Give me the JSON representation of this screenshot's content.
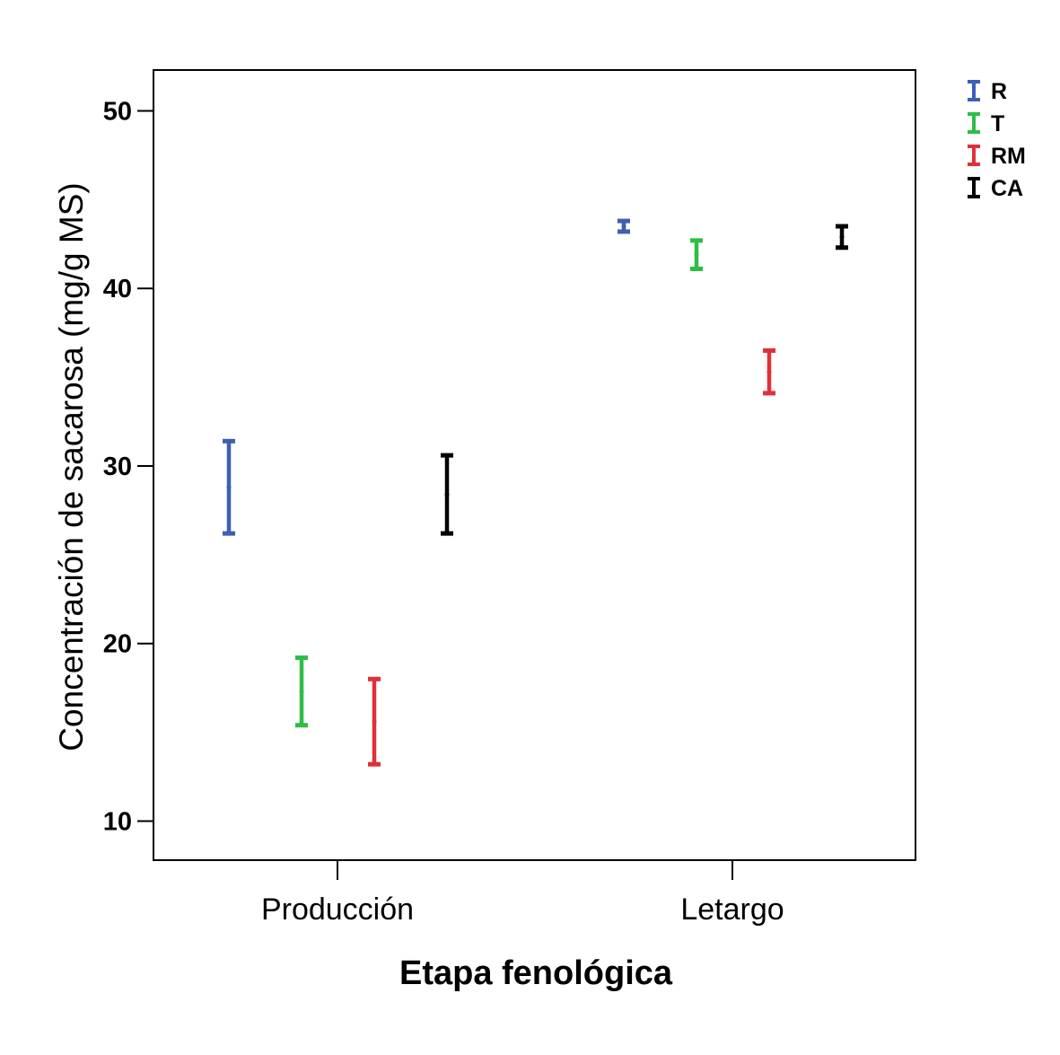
{
  "chart_data": {
    "type": "errorbar",
    "title": "",
    "xlabel": "Etapa fenológica",
    "ylabel": "Concentración de sacarosa (mg/g MS)",
    "categories": [
      "Producción",
      "Letargo"
    ],
    "ylim": [
      7.8,
      52.3
    ],
    "yticks": [
      10,
      20,
      30,
      40,
      50
    ],
    "grid": false,
    "legend_position": "top-right",
    "series": [
      {
        "name": "R",
        "color": "#3d5fb5",
        "mean": [
          28.8,
          43.5
        ],
        "lower": [
          26.2,
          43.2
        ],
        "upper": [
          31.4,
          43.8
        ]
      },
      {
        "name": "T",
        "color": "#2ebd47",
        "mean": [
          17.3,
          41.9
        ],
        "lower": [
          15.4,
          41.1
        ],
        "upper": [
          19.2,
          42.7
        ]
      },
      {
        "name": "RM",
        "color": "#e0303a",
        "mean": [
          15.6,
          35.3
        ],
        "lower": [
          13.2,
          34.1
        ],
        "upper": [
          18.0,
          36.5
        ]
      },
      {
        "name": "CA",
        "color": "#000000",
        "mean": [
          28.4,
          42.9
        ],
        "lower": [
          26.2,
          42.3
        ],
        "upper": [
          30.6,
          43.5
        ]
      }
    ]
  }
}
